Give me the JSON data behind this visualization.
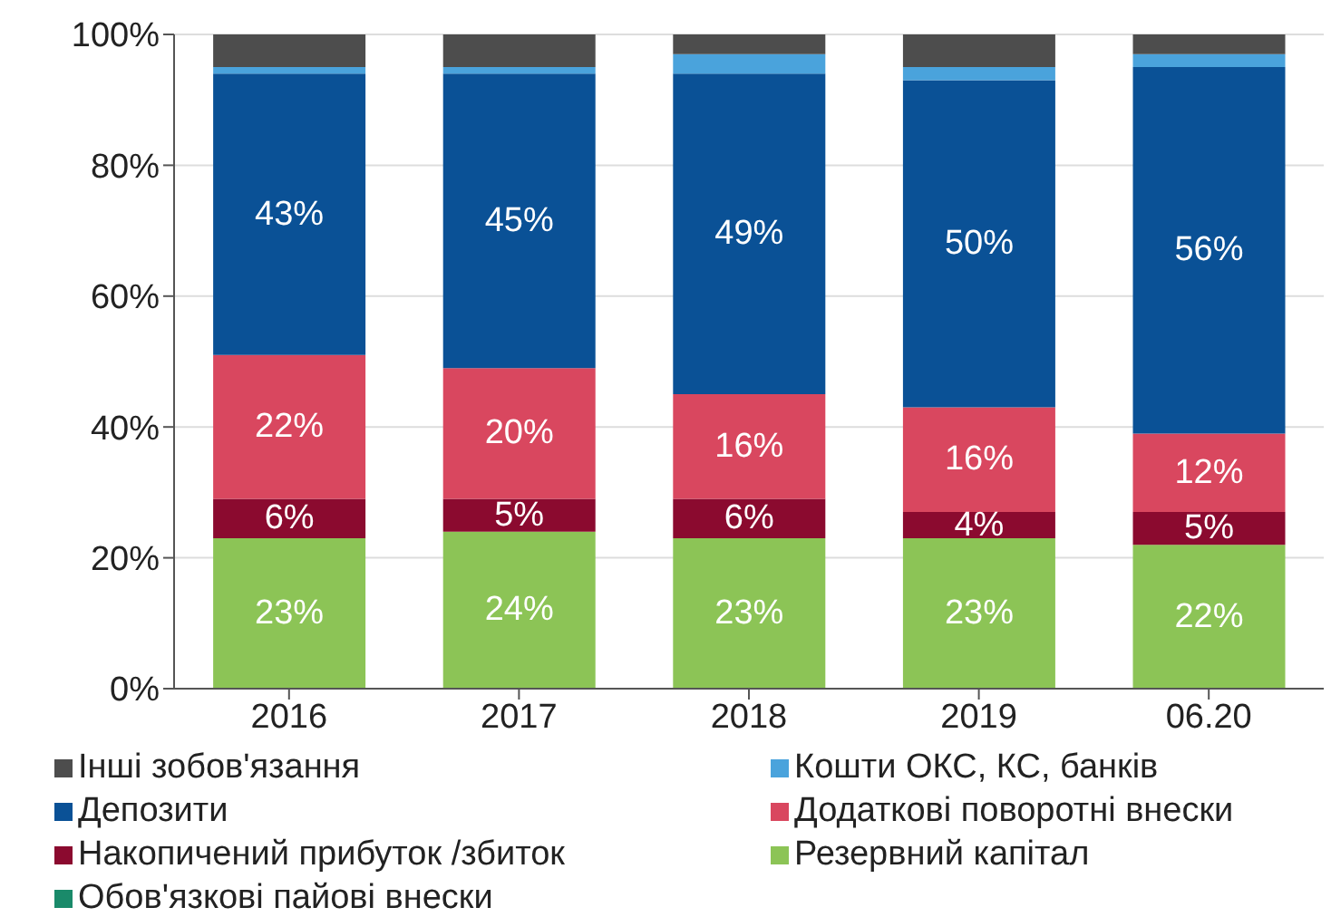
{
  "chart_data": {
    "type": "bar",
    "stacked": true,
    "categories": [
      "2016",
      "2017",
      "2018",
      "2019",
      "06.20"
    ],
    "ylim": [
      0,
      100
    ],
    "yticks": [
      {
        "value": 0,
        "label": "0%"
      },
      {
        "value": 20,
        "label": "20%"
      },
      {
        "value": 40,
        "label": "40%"
      },
      {
        "value": 60,
        "label": "60%"
      },
      {
        "value": 80,
        "label": "80%"
      },
      {
        "value": 100,
        "label": "100%"
      }
    ],
    "grid": "y",
    "legend": "bottom",
    "series": [
      {
        "name": "Обов'язкові пайові внески",
        "color": "#1a8a6a",
        "values": [
          0,
          0,
          0,
          0,
          0
        ]
      },
      {
        "name": "Резервний капітал",
        "color": "#8cc456",
        "values": [
          23,
          24,
          23,
          23,
          22
        ],
        "value_labels": [
          "23%",
          "24%",
          "23%",
          "23%",
          "22%"
        ]
      },
      {
        "name": "Накопичений прибуток /збиток",
        "color": "#8b0a2f",
        "values": [
          6,
          5,
          6,
          4,
          5
        ],
        "value_labels": [
          "6%",
          "5%",
          "6%",
          "4%",
          "5%"
        ]
      },
      {
        "name": "Додаткові поворотні внески",
        "color": "#d9475f",
        "values": [
          22,
          20,
          16,
          16,
          12
        ],
        "value_labels": [
          "22%",
          "20%",
          "16%",
          "16%",
          "12%"
        ]
      },
      {
        "name": "Депозити",
        "color": "#0a5196",
        "values": [
          43,
          45,
          49,
          50,
          56
        ],
        "value_labels": [
          "43%",
          "45%",
          "49%",
          "50%",
          "56%"
        ]
      },
      {
        "name": "Кошти ОКС, КС, банків",
        "color": "#4aa3dc",
        "values": [
          1,
          1,
          3,
          2,
          2
        ]
      },
      {
        "name": "Інші зобов'язання",
        "color": "#4d4d4d",
        "values": [
          5,
          5,
          3,
          5,
          3
        ]
      }
    ]
  }
}
